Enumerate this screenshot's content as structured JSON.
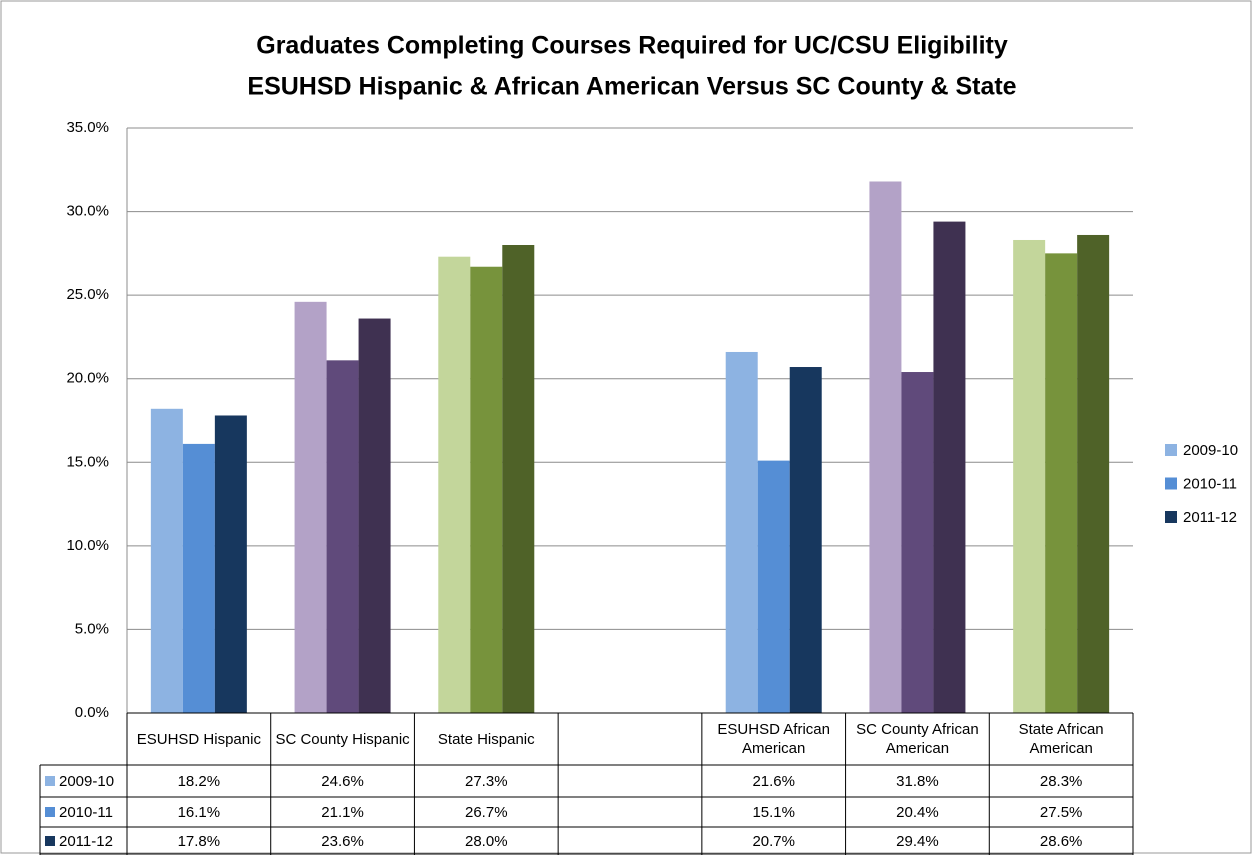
{
  "chart_data": {
    "type": "bar",
    "title": "Graduates Completing Courses Required for UC/CSU Eligibility",
    "subtitle": "ESUHSD Hispanic & African American  Versus SC County & State",
    "categories": [
      "ESUHSD Hispanic",
      "SC County Hispanic",
      "State Hispanic",
      null,
      "ESUHSD African American",
      "SC County African American",
      "State African American"
    ],
    "series": [
      {
        "name": "2009-10",
        "color": "#8db3e2",
        "colors": [
          "#8db3e2",
          "#b3a2c7",
          "#c3d69b",
          null,
          "#8db3e2",
          "#b3a2c7",
          "#c3d69b"
        ],
        "values": [
          18.2,
          24.6,
          27.3,
          null,
          21.6,
          31.8,
          28.3
        ],
        "value_labels": [
          "18.2%",
          "24.6%",
          "27.3%",
          null,
          "21.6%",
          "31.8%",
          "28.3%"
        ]
      },
      {
        "name": "2010-11",
        "color": "#558ed5",
        "colors": [
          "#558ed5",
          "#604a7b",
          "#77933c",
          null,
          "#558ed5",
          "#604a7b",
          "#77933c"
        ],
        "values": [
          16.1,
          21.1,
          26.7,
          null,
          15.1,
          20.4,
          27.5
        ],
        "value_labels": [
          "16.1%",
          "21.1%",
          "26.7%",
          null,
          "15.1%",
          "20.4%",
          "27.5%"
        ]
      },
      {
        "name": "2011-12",
        "color": "#17375e",
        "colors": [
          "#17375e",
          "#3f3151",
          "#4f6228",
          null,
          "#17375e",
          "#3f3151",
          "#4f6228"
        ],
        "values": [
          17.8,
          23.6,
          28.0,
          null,
          20.7,
          29.4,
          28.6
        ],
        "value_labels": [
          "17.8%",
          "23.6%",
          "28.0%",
          null,
          "20.7%",
          "29.4%",
          "28.6%"
        ]
      }
    ],
    "ylim": [
      0,
      35
    ],
    "yticks": [
      {
        "value": 0,
        "label": "0.0%"
      },
      {
        "value": 5,
        "label": "5.0%"
      },
      {
        "value": 10,
        "label": "10.0%"
      },
      {
        "value": 15,
        "label": "15.0%"
      },
      {
        "value": 20,
        "label": "20.0%"
      },
      {
        "value": 25,
        "label": "25.0%"
      },
      {
        "value": 30,
        "label": "30.0%"
      },
      {
        "value": 35,
        "label": "35.0%"
      }
    ],
    "grid": true,
    "legend": "right"
  }
}
